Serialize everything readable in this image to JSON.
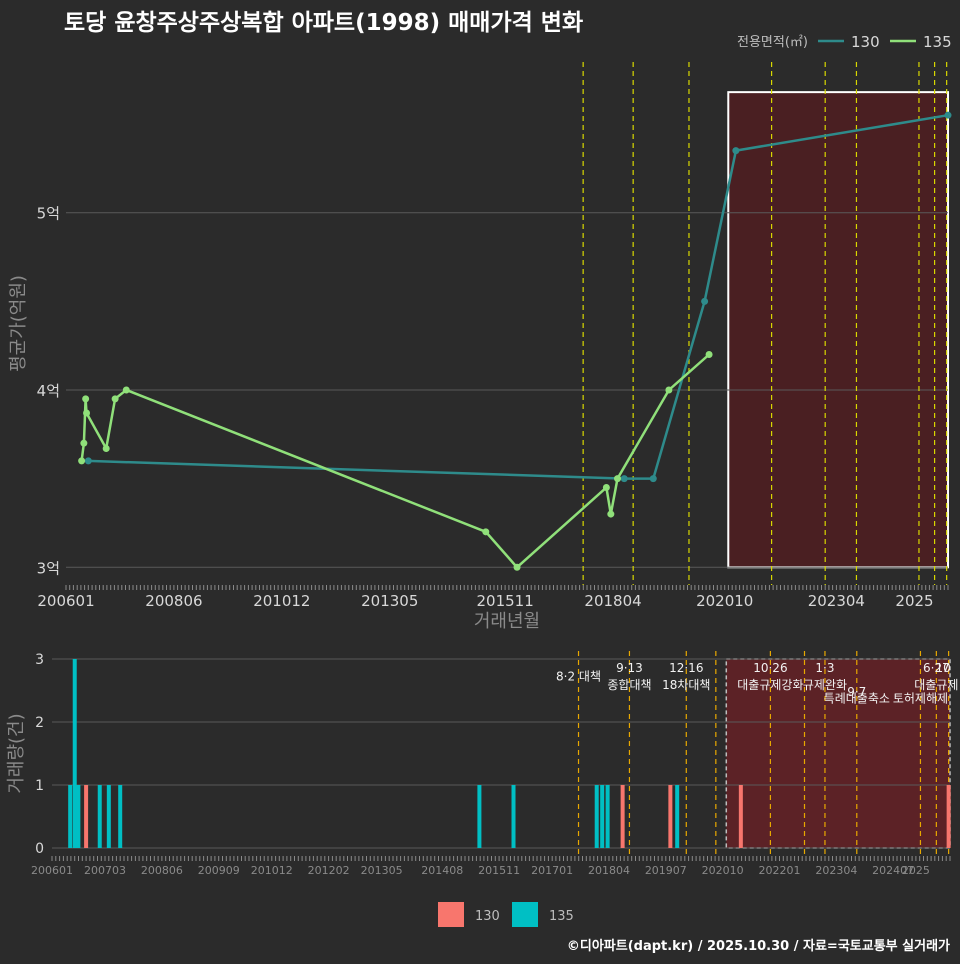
{
  "title": "토당 윤창주상주상복합 아파트(1998) 매매가격 변화",
  "credit": "©디아파트(dapt.kr) / 2025.10.30 / 자료=국토교통부 실거래가",
  "colors": {
    "background": "#2b2b2b",
    "grid": "#5a5a5a",
    "series_130_price": "#2e8b8b",
    "series_135_price": "#90e07a",
    "series_130_bar": "#f8766d",
    "series_135_bar": "#00bfc4",
    "policy_line_upper": "#d8d800",
    "policy_line_lower": "#e8a800",
    "highlight_fill": "#4a1f22",
    "highlight_fill_lower": "#5c2226"
  },
  "chart_data": [
    {
      "type": "line",
      "title": "토당 윤창주상주상복합 아파트(1998) 매매가격 변화",
      "xlabel": "거래년월",
      "ylabel": "평균가(억원)",
      "ylim": [
        2.9,
        5.85
      ],
      "xlim_months": [
        2006.0,
        2025.75
      ],
      "yticks": [
        3,
        4,
        5
      ],
      "ytick_labels": [
        "3억",
        "4억",
        "5억"
      ],
      "xticks": [
        2006.0,
        2008.417,
        2010.833,
        2013.25,
        2015.833,
        2018.25,
        2020.75,
        2023.25,
        2025.0
      ],
      "xtick_labels": [
        "200601",
        "200806",
        "201012",
        "201305",
        "201511",
        "201804",
        "202010",
        "202304",
        "2025"
      ],
      "legend_title": "전용면적(㎡)",
      "legend_position": "top-right",
      "series": [
        {
          "name": "130",
          "color_key": "series_130_price",
          "x": [
            2006.5,
            2018.5,
            2019.15,
            2020.3,
            2021.0,
            2025.75
          ],
          "y": [
            3.6,
            3.5,
            3.5,
            4.5,
            5.35,
            5.55
          ]
        },
        {
          "name": "135",
          "color_key": "series_135_price",
          "x": [
            2006.35,
            2006.4,
            2006.44,
            2006.46,
            2006.9,
            2007.1,
            2007.35,
            2015.4,
            2016.1,
            2018.1,
            2018.2,
            2018.35,
            2019.5,
            2020.4
          ],
          "y": [
            3.6,
            3.7,
            3.95,
            3.87,
            3.67,
            3.95,
            4.0,
            3.2,
            3.0,
            3.45,
            3.3,
            3.5,
            4.0,
            4.2
          ]
        }
      ],
      "policy_lines": [
        2017.58,
        2018.7,
        2019.95,
        2021.8,
        2023.0,
        2023.7,
        2025.1,
        2025.45,
        2025.72
      ],
      "highlight_range": [
        2020.83,
        2025.75
      ],
      "highlight_ylim": [
        3.0,
        5.68
      ]
    },
    {
      "type": "bar",
      "ylabel": "거래량(건)",
      "ylim": [
        0,
        3
      ],
      "yticks": [
        0,
        1,
        2,
        3
      ],
      "xlim_months": [
        2006.0,
        2025.75
      ],
      "xticks": [
        2006.0,
        2007.167,
        2008.417,
        2009.667,
        2010.833,
        2012.083,
        2013.25,
        2014.583,
        2015.833,
        2017.0,
        2018.25,
        2019.5,
        2020.75,
        2022.0,
        2023.25,
        2024.5,
        2025.0
      ],
      "xtick_labels": [
        "200601",
        "200703",
        "200806",
        "200909",
        "201012",
        "201202",
        "201305",
        "201408",
        "201511",
        "201701",
        "201804",
        "201907",
        "202010",
        "202201",
        "202304",
        "202407",
        "2025"
      ],
      "series": [
        {
          "name": "130",
          "color_key": "series_130_bar",
          "x": [
            2006.75,
            2018.55,
            2019.6,
            2021.15,
            2025.72
          ],
          "y": [
            1,
            1,
            1,
            1,
            1
          ]
        },
        {
          "name": "135",
          "color_key": "series_135_bar",
          "x": [
            2006.4,
            2006.5,
            2006.58,
            2007.05,
            2007.25,
            2007.5,
            2015.4,
            2016.15,
            2017.98,
            2018.1,
            2018.22,
            2019.75
          ],
          "y": [
            1,
            3,
            1,
            1,
            1,
            1,
            1,
            1,
            1,
            1,
            1,
            1
          ]
        }
      ],
      "policy_lines": [
        2017.58,
        2018.7,
        2019.95,
        2020.6,
        2021.8,
        2022.55,
        2023.0,
        2023.7,
        2025.1,
        2025.45,
        2025.72
      ],
      "highlight_range": [
        2020.83,
        2025.75
      ],
      "policy_labels": [
        {
          "x": 2017.58,
          "level": 2,
          "text": "8·2 대책"
        },
        {
          "x": 2018.7,
          "level": 1,
          "text": "9·13"
        },
        {
          "x": 2018.7,
          "level": 3,
          "text": "종합대책"
        },
        {
          "x": 2019.95,
          "level": 1,
          "text": "12·16"
        },
        {
          "x": 2019.95,
          "level": 3,
          "text": "18차대책"
        },
        {
          "x": 2021.8,
          "level": 1,
          "text": "10·26"
        },
        {
          "x": 2021.8,
          "level": 3,
          "text": "대출규제강화"
        },
        {
          "x": 2023.0,
          "level": 1,
          "text": "1·3"
        },
        {
          "x": 2023.0,
          "level": 3,
          "text": "규제완화"
        },
        {
          "x": 2023.7,
          "level": 3.8,
          "text": "9·7"
        },
        {
          "x": 2023.7,
          "level": 4.6,
          "text": "특례대출축소"
        },
        {
          "x": 2025.45,
          "level": 1,
          "text": "6·27"
        },
        {
          "x": 2025.6,
          "level": 1,
          "text": "10"
        },
        {
          "x": 2025.45,
          "level": 3,
          "text": "대출규제"
        },
        {
          "x": 2025.1,
          "level": 4.6,
          "text": "토허제해제"
        }
      ],
      "legend": [
        {
          "name": "130",
          "color_key": "series_130_bar"
        },
        {
          "name": "135",
          "color_key": "series_135_bar"
        }
      ]
    }
  ]
}
